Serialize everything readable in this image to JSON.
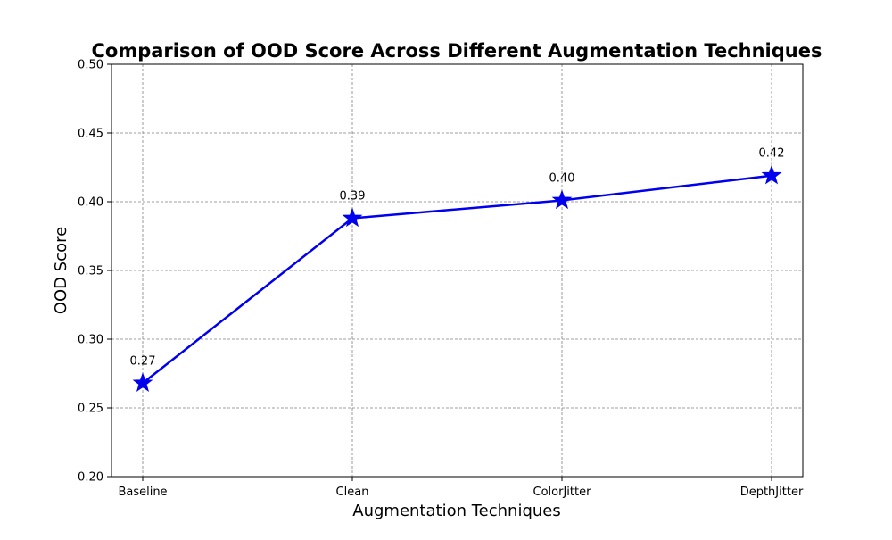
{
  "chart_data": {
    "type": "line",
    "title": "Comparison of OOD Score Across Different Augmentation Techniques",
    "xlabel": "Augmentation Techniques",
    "ylabel": "OOD Score",
    "categories": [
      "Baseline",
      "Clean",
      "ColorJitter",
      "DepthJitter"
    ],
    "series": [
      {
        "values": [
          0.268,
          0.388,
          0.401,
          0.419
        ],
        "labels": [
          "0.27",
          "0.39",
          "0.40",
          "0.42"
        ],
        "color": "#0000ee",
        "marker": "star"
      }
    ],
    "ylim": [
      0.2,
      0.5
    ],
    "yticks": [
      "0.20",
      "0.25",
      "0.30",
      "0.35",
      "0.40",
      "0.45",
      "0.50"
    ],
    "grid": true
  }
}
